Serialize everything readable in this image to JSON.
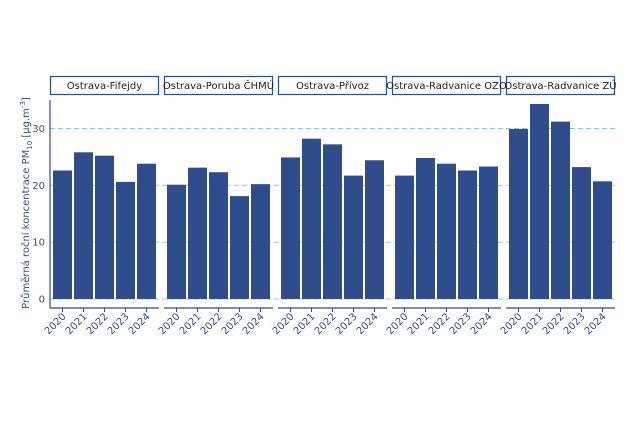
{
  "chart_data": {
    "type": "bar",
    "ylabel_main": "Průměrná roční koncentrace PM",
    "ylabel_sub": "10",
    "ylabel_unit_open": " [μg.m",
    "ylabel_unit_sup": "-3",
    "ylabel_unit_close": "]",
    "ylim": [
      0,
      35
    ],
    "yticks": [
      "0",
      "10",
      "20",
      "30"
    ],
    "ytick_values": [
      0,
      10,
      20,
      30
    ],
    "categories": [
      "2020",
      "2021",
      "2022",
      "2023",
      "2024"
    ],
    "grid": "horizontal dashed",
    "colors": {
      "bar": "#2e4d8a",
      "axis": "#2e4d8a",
      "grid": "#7fb8c8",
      "strip_border": "#2e4d8a"
    },
    "panels": [
      {
        "name": "Ostrava-Fifejdy",
        "values": [
          22.6,
          25.8,
          25.2,
          20.6,
          23.8
        ]
      },
      {
        "name": "Ostrava-Poruba ČHMÚ",
        "values": [
          20.1,
          23.1,
          22.3,
          18.1,
          20.2
        ]
      },
      {
        "name": "Ostrava-Přívoz",
        "values": [
          24.9,
          28.2,
          27.2,
          21.7,
          24.4
        ]
      },
      {
        "name": "Ostrava-Radvanice OZO",
        "values": [
          21.7,
          24.8,
          23.8,
          22.6,
          23.3
        ]
      },
      {
        "name": "Ostrava-Radvanice ZÚ",
        "values": [
          29.9,
          34.3,
          31.2,
          23.2,
          20.7
        ]
      }
    ]
  }
}
